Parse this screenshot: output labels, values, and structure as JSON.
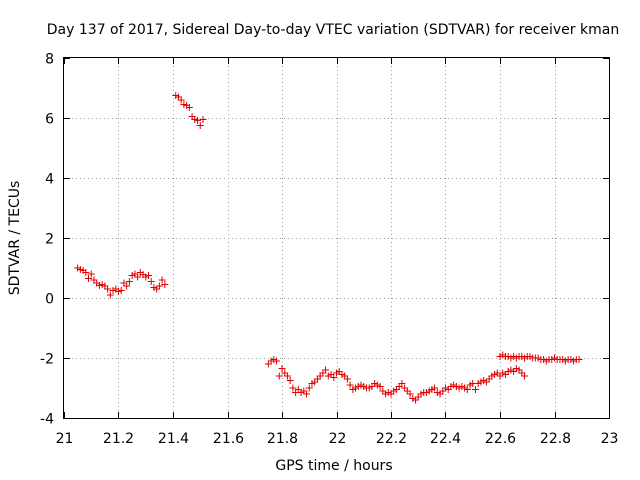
{
  "chart_data": {
    "type": "scatter",
    "title": "Day 137 of 2017, Sidereal Day-to-day VTEC variation (SDTVAR) for receiver kman",
    "xlabel": "GPS time / hours",
    "ylabel": "SDTVAR / TECUs",
    "xlim": [
      21,
      23
    ],
    "ylim": [
      -4,
      8
    ],
    "xticks": [
      "21",
      "21.2",
      "21.4",
      "21.6",
      "21.8",
      "22",
      "22.2",
      "22.4",
      "22.6",
      "22.8",
      "23"
    ],
    "yticks": [
      "-4",
      "-2",
      "0",
      "2",
      "4",
      "6",
      "8"
    ],
    "grid": true,
    "marker": "+",
    "color": "#e00000",
    "series": [
      {
        "name": "SDTVAR",
        "points": [
          [
            21.05,
            1.0
          ],
          [
            21.06,
            0.95
          ],
          [
            21.07,
            0.92
          ],
          [
            21.08,
            0.85
          ],
          [
            21.09,
            0.65
          ],
          [
            21.1,
            0.8
          ],
          [
            21.11,
            0.6
          ],
          [
            21.12,
            0.5
          ],
          [
            21.13,
            0.42
          ],
          [
            21.14,
            0.45
          ],
          [
            21.15,
            0.4
          ],
          [
            21.16,
            0.3
          ],
          [
            21.17,
            0.1
          ],
          [
            21.18,
            0.25
          ],
          [
            21.19,
            0.3
          ],
          [
            21.2,
            0.22
          ],
          [
            21.21,
            0.25
          ],
          [
            21.22,
            0.5
          ],
          [
            21.23,
            0.4
          ],
          [
            21.24,
            0.55
          ],
          [
            21.25,
            0.75
          ],
          [
            21.26,
            0.8
          ],
          [
            21.27,
            0.7
          ],
          [
            21.28,
            0.85
          ],
          [
            21.29,
            0.78
          ],
          [
            21.3,
            0.7
          ],
          [
            21.31,
            0.75
          ],
          [
            21.32,
            0.55
          ],
          [
            21.33,
            0.35
          ],
          [
            21.34,
            0.3
          ],
          [
            21.35,
            0.4
          ],
          [
            21.36,
            0.6
          ],
          [
            21.37,
            0.45
          ],
          [
            21.41,
            6.75
          ],
          [
            21.42,
            6.7
          ],
          [
            21.43,
            6.6
          ],
          [
            21.44,
            6.45
          ],
          [
            21.45,
            6.42
          ],
          [
            21.46,
            6.35
          ],
          [
            21.47,
            6.05
          ],
          [
            21.48,
            5.95
          ],
          [
            21.49,
            5.92
          ],
          [
            21.5,
            5.75
          ],
          [
            21.51,
            5.95
          ],
          [
            21.75,
            -2.2
          ],
          [
            21.76,
            -2.1
          ],
          [
            21.77,
            -2.05
          ],
          [
            21.78,
            -2.1
          ],
          [
            21.79,
            -2.6
          ],
          [
            21.8,
            -2.35
          ],
          [
            21.81,
            -2.5
          ],
          [
            21.82,
            -2.6
          ],
          [
            21.83,
            -2.75
          ],
          [
            21.84,
            -3.0
          ],
          [
            21.85,
            -3.15
          ],
          [
            21.86,
            -3.05
          ],
          [
            21.87,
            -3.15
          ],
          [
            21.88,
            -3.1
          ],
          [
            21.89,
            -3.2
          ],
          [
            21.9,
            -3.0
          ],
          [
            21.91,
            -2.85
          ],
          [
            21.92,
            -2.8
          ],
          [
            21.93,
            -2.7
          ],
          [
            21.94,
            -2.6
          ],
          [
            21.95,
            -2.5
          ],
          [
            21.96,
            -2.4
          ],
          [
            21.97,
            -2.6
          ],
          [
            21.98,
            -2.55
          ],
          [
            21.99,
            -2.65
          ],
          [
            22.0,
            -2.5
          ],
          [
            22.01,
            -2.45
          ],
          [
            22.02,
            -2.55
          ],
          [
            22.03,
            -2.6
          ],
          [
            22.04,
            -2.7
          ],
          [
            22.05,
            -2.9
          ],
          [
            22.06,
            -3.05
          ],
          [
            22.07,
            -3.0
          ],
          [
            22.08,
            -2.95
          ],
          [
            22.09,
            -2.9
          ],
          [
            22.1,
            -2.95
          ],
          [
            22.11,
            -3.0
          ],
          [
            22.12,
            -3.0
          ],
          [
            22.13,
            -2.95
          ],
          [
            22.14,
            -2.85
          ],
          [
            22.15,
            -2.9
          ],
          [
            22.16,
            -2.95
          ],
          [
            22.17,
            -3.1
          ],
          [
            22.18,
            -3.2
          ],
          [
            22.19,
            -3.15
          ],
          [
            22.2,
            -3.2
          ],
          [
            22.21,
            -3.1
          ],
          [
            22.22,
            -3.05
          ],
          [
            22.23,
            -2.95
          ],
          [
            22.24,
            -2.85
          ],
          [
            22.25,
            -3.0
          ],
          [
            22.26,
            -3.1
          ],
          [
            22.27,
            -3.2
          ],
          [
            22.28,
            -3.35
          ],
          [
            22.29,
            -3.4
          ],
          [
            22.3,
            -3.3
          ],
          [
            22.31,
            -3.2
          ],
          [
            22.32,
            -3.15
          ],
          [
            22.33,
            -3.15
          ],
          [
            22.34,
            -3.1
          ],
          [
            22.35,
            -3.05
          ],
          [
            22.36,
            -3.0
          ],
          [
            22.37,
            -3.15
          ],
          [
            22.38,
            -3.2
          ],
          [
            22.39,
            -3.1
          ],
          [
            22.4,
            -3.0
          ],
          [
            22.41,
            -3.05
          ],
          [
            22.42,
            -2.95
          ],
          [
            22.43,
            -2.9
          ],
          [
            22.44,
            -2.95
          ],
          [
            22.45,
            -3.0
          ],
          [
            22.46,
            -2.95
          ],
          [
            22.47,
            -3.0
          ],
          [
            22.48,
            -3.05
          ],
          [
            22.49,
            -2.9
          ],
          [
            22.5,
            -2.85
          ],
          [
            22.51,
            -3.05
          ],
          [
            22.52,
            -2.85
          ],
          [
            22.53,
            -2.8
          ],
          [
            22.54,
            -2.75
          ],
          [
            22.55,
            -2.8
          ],
          [
            22.56,
            -2.7
          ],
          [
            22.57,
            -2.6
          ],
          [
            22.58,
            -2.55
          ],
          [
            22.59,
            -2.5
          ],
          [
            22.6,
            -2.6
          ],
          [
            22.61,
            -2.5
          ],
          [
            22.62,
            -2.55
          ],
          [
            22.63,
            -2.45
          ],
          [
            22.64,
            -2.4
          ],
          [
            22.65,
            -2.45
          ],
          [
            22.66,
            -2.35
          ],
          [
            22.67,
            -2.4
          ],
          [
            22.68,
            -2.5
          ],
          [
            22.69,
            -2.6
          ],
          [
            22.6,
            -1.95
          ],
          [
            22.61,
            -1.9
          ],
          [
            22.62,
            -1.95
          ],
          [
            22.63,
            -1.95
          ],
          [
            22.64,
            -2.0
          ],
          [
            22.65,
            -1.95
          ],
          [
            22.66,
            -2.0
          ],
          [
            22.67,
            -1.95
          ],
          [
            22.68,
            -1.95
          ],
          [
            22.69,
            -2.0
          ],
          [
            22.7,
            -1.95
          ],
          [
            22.71,
            -1.95
          ],
          [
            22.72,
            -2.0
          ],
          [
            22.73,
            -2.0
          ],
          [
            22.74,
            -2.0
          ],
          [
            22.75,
            -2.05
          ],
          [
            22.76,
            -2.05
          ],
          [
            22.77,
            -2.1
          ],
          [
            22.78,
            -2.05
          ],
          [
            22.79,
            -2.05
          ],
          [
            22.8,
            -2.0
          ],
          [
            22.81,
            -2.05
          ],
          [
            22.82,
            -2.05
          ],
          [
            22.83,
            -2.05
          ],
          [
            22.84,
            -2.1
          ],
          [
            22.85,
            -2.05
          ],
          [
            22.86,
            -2.05
          ],
          [
            22.87,
            -2.1
          ],
          [
            22.88,
            -2.05
          ],
          [
            22.89,
            -2.05
          ]
        ]
      }
    ]
  }
}
